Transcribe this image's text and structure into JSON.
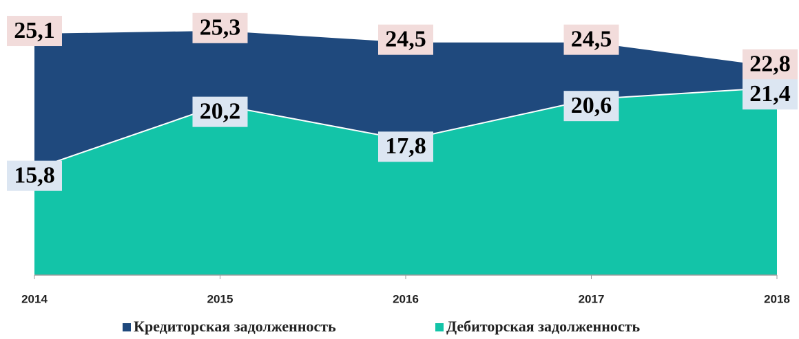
{
  "chart_data": {
    "type": "area",
    "categories": [
      "2014",
      "2015",
      "2016",
      "2017",
      "2018"
    ],
    "series": [
      {
        "name": "Кредиторская задолженность",
        "color": "#1f497d",
        "label_bg": "#f2dcdb",
        "values": [
          25.1,
          25.3,
          24.5,
          24.5,
          22.8
        ],
        "value_labels": [
          "25,1",
          "25,3",
          "24,5",
          "24,5",
          "22,8"
        ]
      },
      {
        "name": "Дебиторская задолженность",
        "color": "#13c4a8",
        "label_bg": "#dce6f2",
        "values": [
          15.8,
          20.2,
          17.8,
          20.6,
          21.4
        ],
        "value_labels": [
          "15,8",
          "20,2",
          "17,8",
          "20,6",
          "21,4"
        ]
      }
    ],
    "ylim": [
      8.5,
      26
    ],
    "legend": "bottom"
  }
}
